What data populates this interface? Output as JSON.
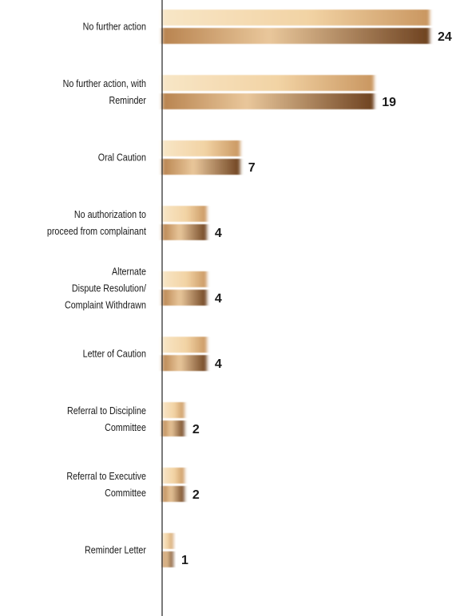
{
  "chart_data": {
    "type": "bar",
    "orientation": "horizontal",
    "categories": [
      "No further action",
      "No further action, with\nReminder",
      "Oral Caution",
      "No authorization to\nproceed from complainant",
      "Alternate\nDispute Resolution/\nComplaint Withdrawn",
      "Letter of Caution",
      "Referral to Discipline\nCommittee",
      "Referral to Executive\nCommittee",
      "Reminder Letter"
    ],
    "values": [
      24,
      19,
      7,
      4,
      4,
      4,
      2,
      2,
      1
    ],
    "value_labels": [
      "24",
      "19",
      "7",
      "4",
      "4",
      "4",
      "2",
      "2",
      "1"
    ],
    "xlim": [
      0,
      24
    ],
    "title": "",
    "xlabel": "",
    "ylabel": "",
    "grid": false,
    "legend": "none",
    "style": "paired gradient bars: light tan upper bar and dark bronze lower bar per category, with blurred right edges",
    "colors": {
      "light_bar_start": "#f7e2bf",
      "light_bar_end": "#c9955a",
      "dark_bar_start": "#e7c49a",
      "dark_bar_end": "#6f4320",
      "axis": "#222222",
      "text": "#1a1a1a"
    }
  }
}
